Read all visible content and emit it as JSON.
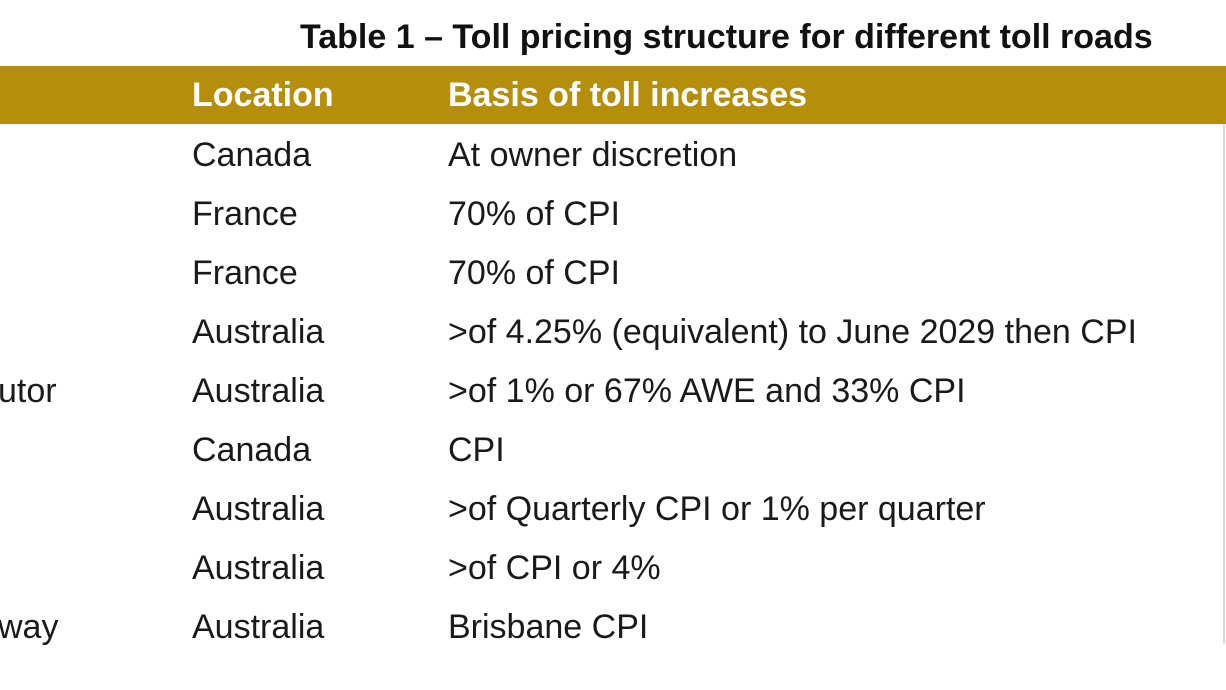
{
  "table": {
    "caption": "Table 1 – Toll pricing structure for different toll roads",
    "headers": {
      "name": "",
      "location": "Location",
      "basis": "Basis of toll increases"
    },
    "rows": [
      {
        "name": "",
        "location": "Canada",
        "basis": "At owner discretion"
      },
      {
        "name": "",
        "location": "France",
        "basis": "70% of CPI"
      },
      {
        "name": "",
        "location": "France",
        "basis": "70% of CPI"
      },
      {
        "name": "",
        "location": "Australia",
        "basis": ">of 4.25% (equivalent) to June 2029 then CPI"
      },
      {
        "name": "utor",
        "location": "Australia",
        "basis": ">of 1% or 67% AWE and 33% CPI"
      },
      {
        "name": "",
        "location": "Canada",
        "basis": "CPI"
      },
      {
        "name": "",
        "location": "Australia",
        "basis": ">of Quarterly CPI or 1% per quarter"
      },
      {
        "name": "",
        "location": "Australia",
        "basis": ">of CPI or 4%"
      },
      {
        "name": "way",
        "location": "Australia",
        "basis": "Brisbane CPI"
      }
    ]
  },
  "colors": {
    "header_band": "#b58f0b",
    "header_text": "#ffffff",
    "body_text": "#1a1a1a"
  }
}
